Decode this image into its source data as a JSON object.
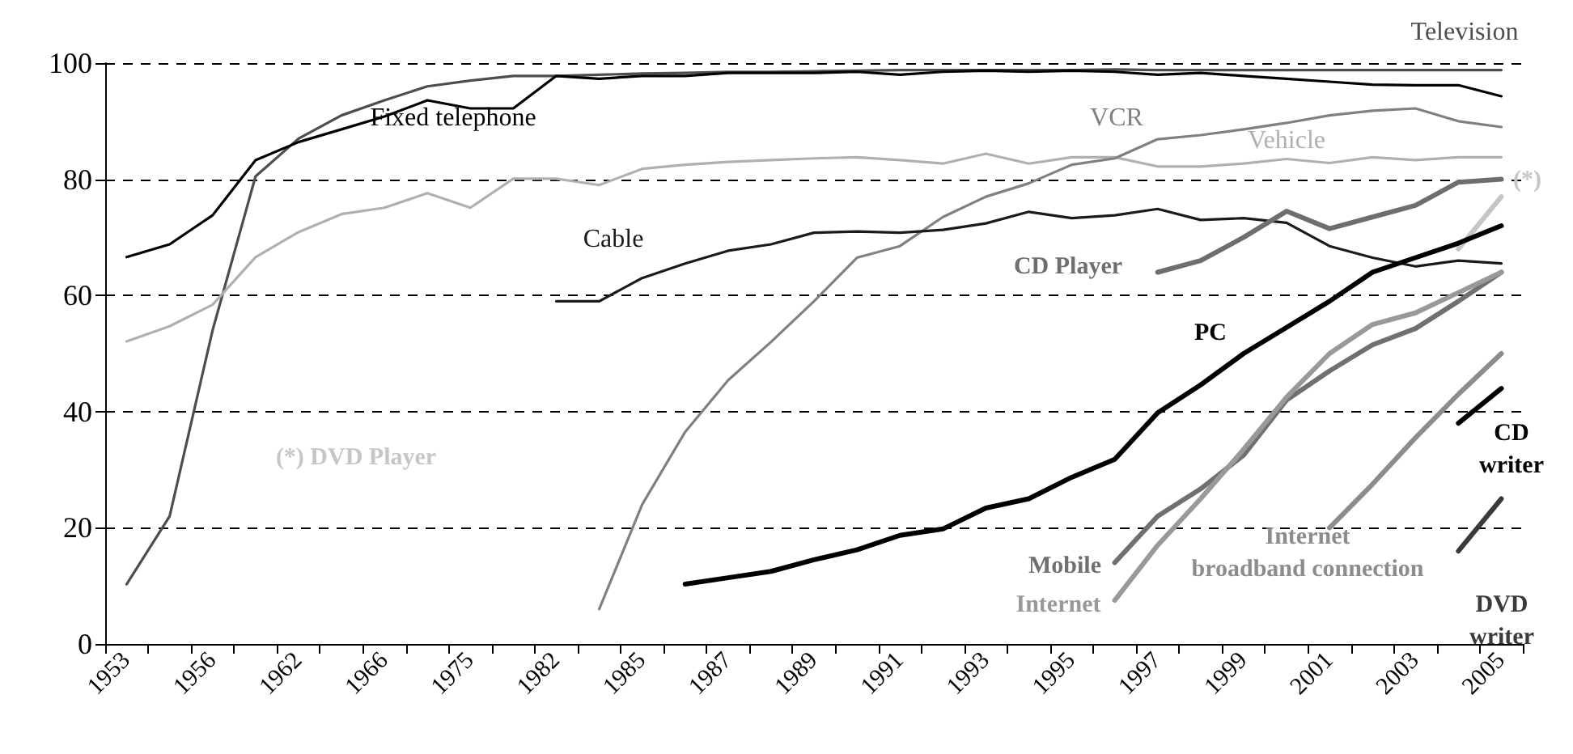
{
  "chart_data": {
    "type": "line",
    "categories": [
      "1953",
      null,
      "1956",
      null,
      "1962",
      null,
      "1966",
      null,
      "1975",
      null,
      "1982",
      null,
      "1985",
      null,
      "1987",
      null,
      "1989",
      null,
      "1991",
      null,
      "1993",
      null,
      "1995",
      null,
      "1997",
      null,
      "1999",
      null,
      "2001",
      null,
      "2003",
      null,
      "2005"
    ],
    "series": [
      {
        "name": "Television",
        "color": "#4d4d4d",
        "values": [
          10.3,
          22,
          54,
          80.5,
          87,
          91,
          93.6,
          96,
          97,
          97.8,
          97.8,
          98,
          98.2,
          98.3,
          98.5,
          98.5,
          98.6,
          98.7,
          98.8,
          98.8,
          98.8,
          98.8,
          98.8,
          98.9,
          98.8,
          98.8,
          98.8,
          98.8,
          98.8,
          98.8,
          98.8,
          98.8,
          98.8
        ]
      },
      {
        "name": "Fixed telephone",
        "color": "#000000",
        "values": [
          66.6,
          68.8,
          73.8,
          83.3,
          86.4,
          88.6,
          90.8,
          93.6,
          92.2,
          92.2,
          97.8,
          97.3,
          97.8,
          97.8,
          98.3,
          98.3,
          98.3,
          98.5,
          98,
          98.5,
          98.7,
          98.5,
          98.7,
          98.5,
          98,
          98.3,
          97.8,
          97.3,
          96.8,
          96.3,
          96.2,
          96.2,
          94.3
        ]
      },
      {
        "name": "Vehicle",
        "color": "#b0b0b0",
        "values": [
          52.1,
          54.7,
          58.4,
          66.6,
          70.9,
          74,
          75.1,
          77.6,
          75.1,
          80.1,
          80.1,
          79,
          81.8,
          82.5,
          83,
          83.3,
          83.6,
          83.8,
          83.3,
          82.7,
          84.4,
          82.7,
          83.8,
          83.8,
          82.2,
          82.2,
          82.7,
          83.5,
          82.8,
          83.8,
          83.3,
          83.8,
          83.8
        ]
      },
      {
        "name": "VCR",
        "color": "#808080",
        "values": [
          null,
          null,
          null,
          null,
          null,
          null,
          null,
          null,
          null,
          null,
          null,
          6,
          24,
          36.5,
          45.4,
          52,
          59,
          66.5,
          68.5,
          73.5,
          77,
          79.3,
          82.5,
          83.6,
          86.9,
          87.6,
          88.6,
          89.7,
          91,
          91.8,
          92.2,
          90,
          89
        ]
      },
      {
        "name": "Cable",
        "color": "#1a1a1a",
        "values": [
          null,
          null,
          null,
          null,
          null,
          null,
          null,
          null,
          null,
          null,
          59,
          59,
          63,
          65.5,
          67.7,
          68.8,
          70.8,
          71,
          70.8,
          71.3,
          72.4,
          74.4,
          73.3,
          73.8,
          74.9,
          73,
          73.3,
          72.5,
          68.5,
          66.5,
          65,
          66,
          65.5
        ]
      },
      {
        "name": "CD Player",
        "color": "#6e6e6e",
        "values": [
          null,
          null,
          null,
          null,
          null,
          null,
          null,
          null,
          null,
          null,
          null,
          null,
          null,
          null,
          null,
          null,
          null,
          null,
          null,
          null,
          null,
          null,
          null,
          null,
          64,
          66,
          70,
          74.5,
          71.5,
          73.5,
          75.5,
          79.5,
          80
        ]
      },
      {
        "name": "(*) DVD Player",
        "color": "#c6c6c6",
        "values": [
          null,
          null,
          null,
          null,
          null,
          null,
          null,
          null,
          null,
          null,
          null,
          null,
          null,
          null,
          null,
          null,
          null,
          null,
          null,
          null,
          null,
          null,
          null,
          null,
          null,
          null,
          null,
          null,
          null,
          null,
          null,
          68,
          77
        ]
      },
      {
        "name": "PC",
        "color": "#000000",
        "values": [
          null,
          null,
          null,
          null,
          null,
          null,
          null,
          null,
          null,
          null,
          null,
          null,
          null,
          10.3,
          11.4,
          12.5,
          14.5,
          16.2,
          18.7,
          19.8,
          23.4,
          25,
          28.7,
          31.8,
          39.8,
          44.6,
          50,
          54.5,
          59,
          64,
          66.5,
          69,
          72
        ]
      },
      {
        "name": "Mobile",
        "color": "#707070",
        "values": [
          null,
          null,
          null,
          null,
          null,
          null,
          null,
          null,
          null,
          null,
          null,
          null,
          null,
          null,
          null,
          null,
          null,
          null,
          null,
          null,
          null,
          null,
          null,
          14,
          22,
          26.7,
          32.5,
          42,
          47,
          51.5,
          54.3,
          59,
          64
        ]
      },
      {
        "name": "Internet",
        "color": "#999999",
        "values": [
          null,
          null,
          null,
          null,
          null,
          null,
          null,
          null,
          null,
          null,
          null,
          null,
          null,
          null,
          null,
          null,
          null,
          null,
          null,
          null,
          null,
          null,
          null,
          7.5,
          17,
          25,
          33.5,
          42.5,
          50,
          55,
          57,
          60.5,
          64
        ]
      },
      {
        "name": "Internet broadband connection",
        "color": "#8c8c8c",
        "values": [
          null,
          null,
          null,
          null,
          null,
          null,
          null,
          null,
          null,
          null,
          null,
          null,
          null,
          null,
          null,
          null,
          null,
          null,
          null,
          null,
          null,
          null,
          null,
          null,
          null,
          null,
          null,
          null,
          20,
          27.5,
          35.5,
          43,
          50
        ]
      },
      {
        "name": "CD writer",
        "color": "#000000",
        "values": [
          null,
          null,
          null,
          null,
          null,
          null,
          null,
          null,
          null,
          null,
          null,
          null,
          null,
          null,
          null,
          null,
          null,
          null,
          null,
          null,
          null,
          null,
          null,
          null,
          null,
          null,
          null,
          null,
          null,
          null,
          null,
          38,
          44
        ]
      },
      {
        "name": "DVD writer",
        "color": "#3a3a3a",
        "values": [
          null,
          null,
          null,
          null,
          null,
          null,
          null,
          null,
          null,
          null,
          null,
          null,
          null,
          null,
          null,
          null,
          null,
          null,
          null,
          null,
          null,
          null,
          null,
          null,
          null,
          null,
          null,
          null,
          null,
          null,
          null,
          16,
          25
        ]
      }
    ],
    "annotations": [
      {
        "text": "(*)",
        "x": "2005",
        "y": 77
      }
    ],
    "ylim": [
      0,
      100
    ],
    "yticks": [
      0,
      20,
      40,
      60,
      80,
      100
    ],
    "grid": "y",
    "line_style": "solid",
    "marker": "none",
    "legend": false
  }
}
